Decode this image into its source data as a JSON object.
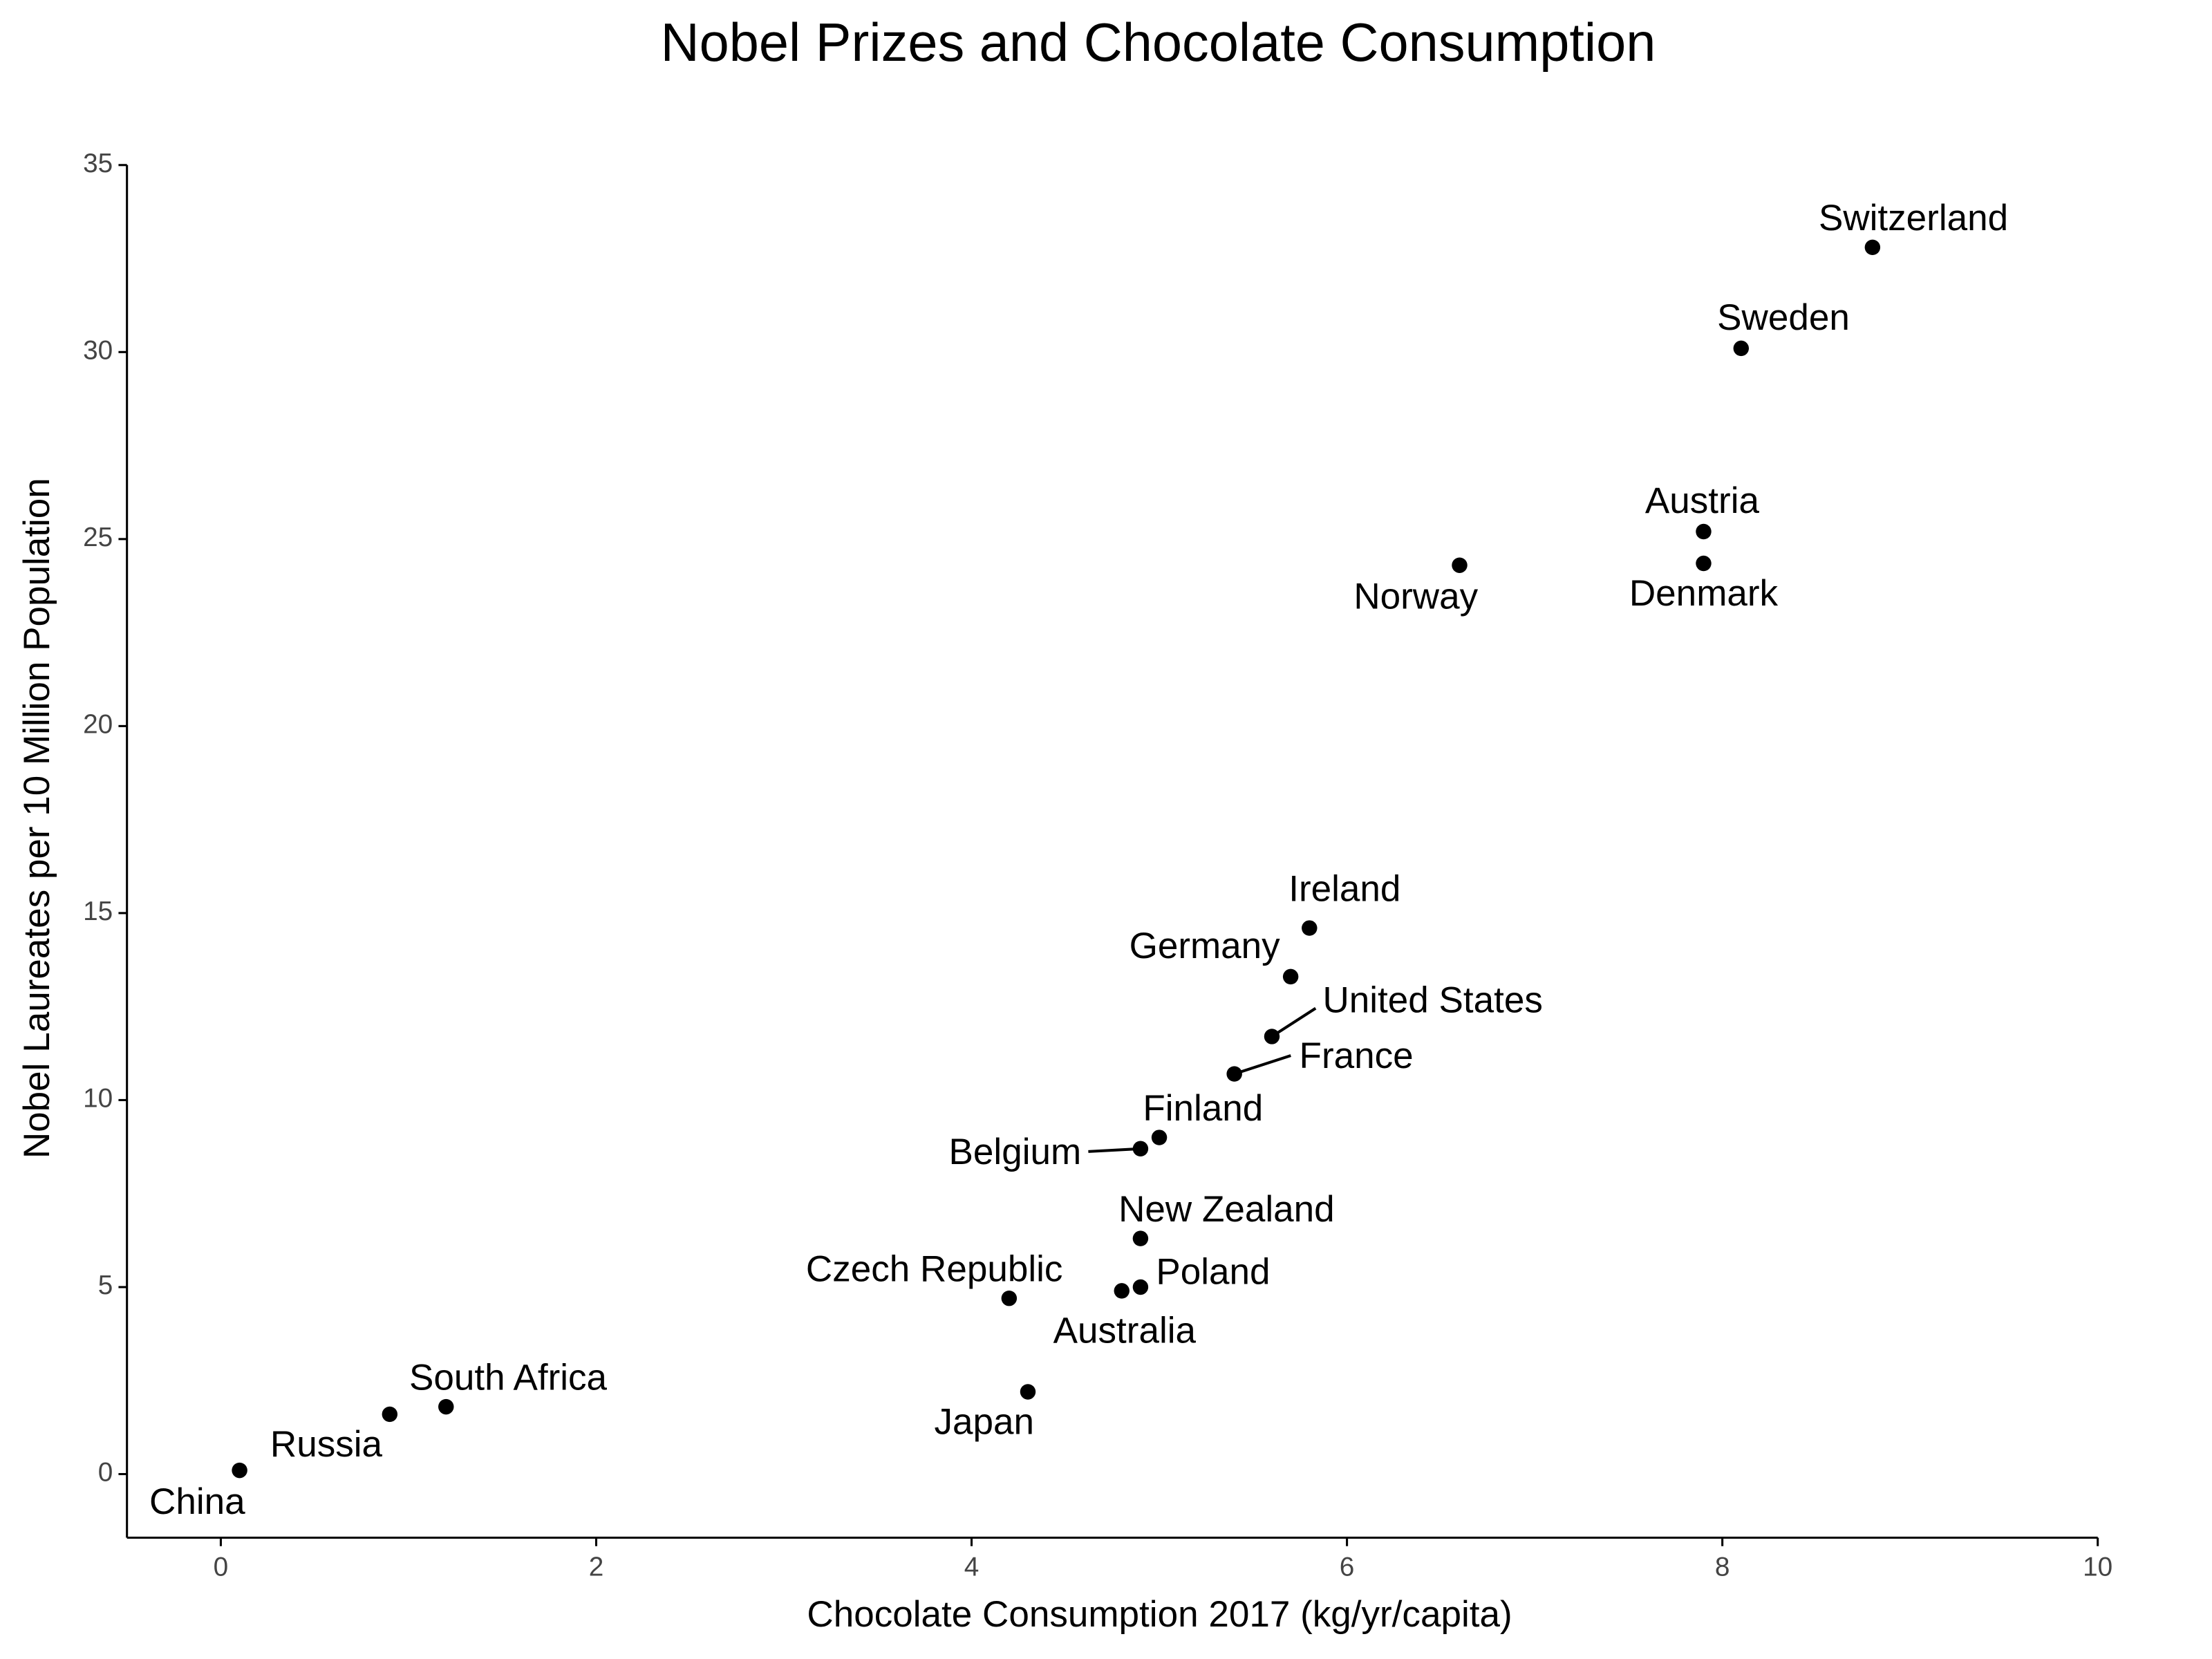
{
  "chart_data": {
    "type": "scatter",
    "title": "Nobel Prizes and Chocolate Consumption",
    "xlabel": "Chocolate Consumption 2017 (kg/yr/capita)",
    "ylabel": "Nobel Laureates per 10 Million Population",
    "labels": [
      "Switzerland",
      "Sweden",
      "Austria",
      "Denmark",
      "Norway",
      "Ireland",
      "Germany",
      "United States",
      "France",
      "Finland",
      "Belgium",
      "New Zealand",
      "Poland",
      "Australia",
      "Czech Republic",
      "Japan",
      "South Africa",
      "Russia",
      "China"
    ],
    "x": [
      8.8,
      8.1,
      7.9,
      7.9,
      6.6,
      5.8,
      5.7,
      5.6,
      5.4,
      5.0,
      4.9,
      4.9,
      4.9,
      4.8,
      4.2,
      4.3,
      1.2,
      0.9,
      0.1
    ],
    "y": [
      32.8,
      30.1,
      25.2,
      24.35,
      24.3,
      14.6,
      13.3,
      11.7,
      10.7,
      9.0,
      8.7,
      6.3,
      5.0,
      4.9,
      4.7,
      2.2,
      1.8,
      1.6,
      0.1
    ],
    "color": "#000000",
    "xlim": [
      -0.5,
      10
    ],
    "ylim": [
      -1.7,
      35
    ],
    "xticks": [
      0,
      2,
      4,
      6,
      8,
      10
    ],
    "yticks": [
      0,
      5,
      10,
      15,
      20,
      25,
      30,
      35
    ]
  }
}
